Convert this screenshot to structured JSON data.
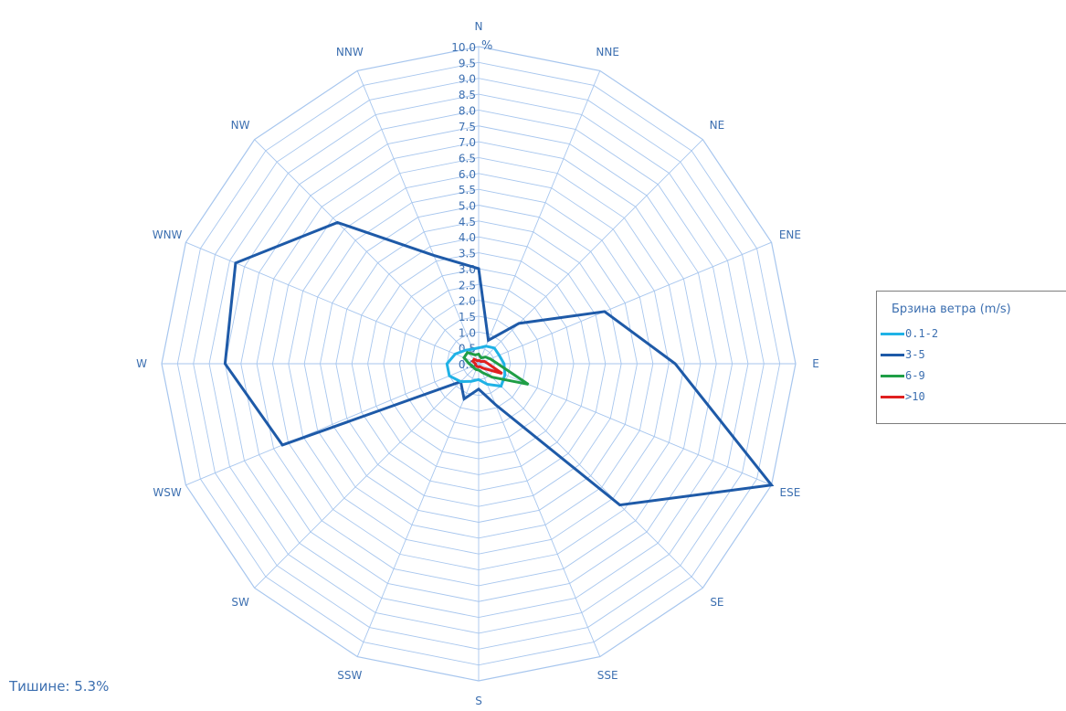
{
  "chart_data": {
    "type": "radar",
    "unit_label": "%",
    "directions": [
      "N",
      "NNE",
      "NE",
      "ENE",
      "E",
      "ESE",
      "SE",
      "SSE",
      "S",
      "SSW",
      "SW",
      "WSW",
      "W",
      "WNW",
      "NW",
      "NNW"
    ],
    "r_ticks": [
      "0.0",
      "0.5",
      "1.0",
      "1.5",
      "2.0",
      "2.5",
      "3.0",
      "3.5",
      "4.0",
      "4.5",
      "5.0",
      "5.5",
      "6.0",
      "6.5",
      "7.0",
      "7.5",
      "8.0",
      "8.5",
      "9.0",
      "9.5",
      "10.0"
    ],
    "rlim": [
      0,
      10
    ],
    "legend_title": "Брзина ветра (m/s)",
    "legend_position": "right",
    "series": [
      {
        "name": "0.1-2",
        "color": "#1fb2e6",
        "values": [
          0.5,
          0.6,
          0.7,
          0.7,
          0.8,
          0.9,
          1.0,
          0.7,
          0.5,
          0.6,
          0.8,
          1.0,
          1.0,
          0.8,
          0.6,
          0.5
        ]
      },
      {
        "name": "3-5",
        "color": "#1e5aa8",
        "values": [
          3.0,
          0.8,
          1.8,
          4.3,
          6.2,
          10.0,
          6.3,
          1.4,
          0.8,
          1.2,
          0.8,
          6.7,
          8.0,
          8.3,
          6.3,
          3.7
        ]
      },
      {
        "name": "6-9",
        "color": "#1f9e46",
        "values": [
          0.3,
          0.2,
          0.3,
          0.4,
          0.6,
          1.7,
          0.6,
          0.3,
          0.2,
          0.2,
          0.2,
          0.2,
          0.3,
          0.5,
          0.5,
          0.3
        ]
      },
      {
        "name": ">10",
        "color": "#e02020",
        "values": [
          0.1,
          0.1,
          0.1,
          0.2,
          0.3,
          0.8,
          0.2,
          0.1,
          0.1,
          0.1,
          0.1,
          0.1,
          0.1,
          0.2,
          0.2,
          0.1
        ]
      }
    ]
  },
  "calm_text": "Тишине: 5.3%",
  "grid_color": "#a7c6ee",
  "label_color": "#3c6fb0"
}
